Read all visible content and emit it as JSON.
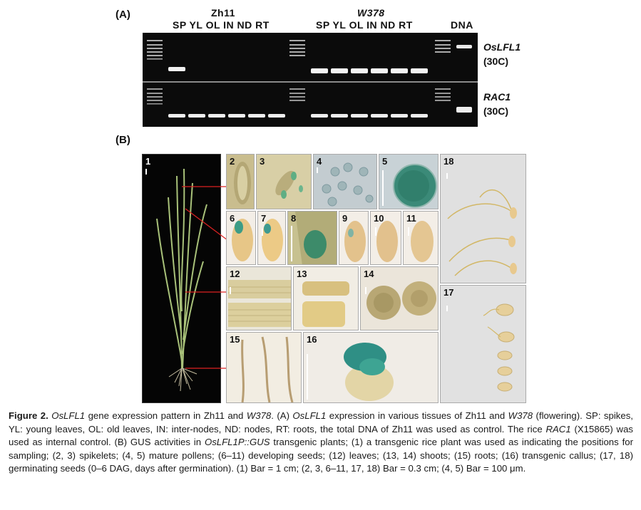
{
  "panel_a": {
    "label": "(A)",
    "group_zh11": "Zh11",
    "group_w378": "W378",
    "lanes_zh11": "SP YL OL IN ND RT",
    "lanes_w378": "SP YL OL IN ND RT",
    "lane_dna": "DNA",
    "gene_top": "OsLFL1",
    "cycles_top": "(30C)",
    "gene_bottom": "RAC1",
    "cycles_bottom": "(30C)"
  },
  "panel_b": {
    "label": "(B)",
    "tile_numbers": [
      "1",
      "2",
      "3",
      "4",
      "5",
      "6",
      "7",
      "8",
      "9",
      "10",
      "11",
      "12",
      "13",
      "14",
      "15",
      "16",
      "18",
      "17"
    ]
  },
  "caption": {
    "p1": "Figure 2.",
    "p2": "OsLFL1",
    "p3": " gene expression pattern in Zh11 and ",
    "p4": "W378",
    "p5": ". (A) ",
    "p6": "OsLFL1",
    "p7": " expression in various tissues of Zh11 and ",
    "p8": "W378",
    "p9": " (flowering). SP: spikes, YL: young leaves, OL: old leaves, IN: inter-nodes, ND: nodes, RT: roots, the total DNA of Zh11 was used as control. The rice ",
    "p10": "RAC1",
    "p11": " (X15865) was used as internal control. (B) GUS activities in ",
    "p12": "OsLFL1P::GUS",
    "p13": " transgenic plants; (1) a transgenic rice plant was used as indicating the positions for sampling; (2, 3) spikelets; (4, 5) mature pollens; (6–11) developing seeds; (12) leaves; (13, 14) shoots; (15) roots; (16) transgenic callus; (17, 18) germinating seeds (0–6 DAG, days after germination). (1) Bar = 1 cm; (2, 3, 6–11, 17, 18) Bar = 0.3 cm; (4, 5) Bar = 100 μm."
  }
}
